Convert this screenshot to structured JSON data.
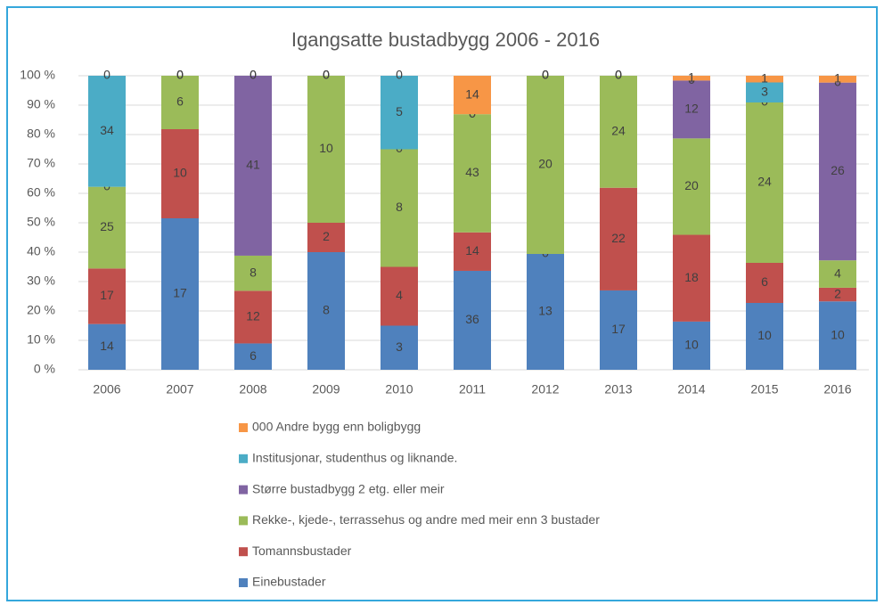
{
  "chart_data": {
    "type": "stacked_bar_percent",
    "title": "Igangsatte bustadbygg 2006 - 2016",
    "categories": [
      "2006",
      "2007",
      "2008",
      "2009",
      "2010",
      "2011",
      "2012",
      "2013",
      "2014",
      "2015",
      "2016"
    ],
    "series": [
      {
        "name": "Einebustader",
        "color": "#4f81bd",
        "values": [
          14,
          17,
          6,
          8,
          3,
          36,
          13,
          17,
          10,
          10,
          10
        ]
      },
      {
        "name": "Tomannsbustader",
        "color": "#c0504d",
        "values": [
          17,
          10,
          12,
          2,
          4,
          14,
          0,
          22,
          18,
          6,
          2
        ]
      },
      {
        "name": "Rekke-, kjede-, terrassehus og andre med meir enn 3 bustader",
        "color": "#9bbb59",
        "values": [
          25,
          6,
          8,
          10,
          8,
          43,
          20,
          24,
          20,
          24,
          4
        ]
      },
      {
        "name": "Større bustadbygg 2 etg. eller meir",
        "color": "#8064a2",
        "values": [
          0,
          0,
          41,
          0,
          0,
          0,
          0,
          0,
          12,
          0,
          26
        ]
      },
      {
        "name": "Institusjonar, studenthus og liknande.",
        "color": "#4bacc6",
        "values": [
          34,
          0,
          0,
          0,
          5,
          0,
          0,
          0,
          0,
          3,
          0
        ]
      },
      {
        "name": "000 Andre bygg enn boligbygg",
        "color": "#f79646",
        "values": [
          0,
          0,
          0,
          0,
          0,
          14,
          0,
          0,
          1,
          1,
          1
        ]
      }
    ],
    "ylim": [
      0,
      100
    ],
    "yticks": [
      {
        "value": 0,
        "label": "0 %"
      },
      {
        "value": 10,
        "label": "10 %"
      },
      {
        "value": 20,
        "label": "20 %"
      },
      {
        "value": 30,
        "label": "30 %"
      },
      {
        "value": 40,
        "label": "40 %"
      },
      {
        "value": 50,
        "label": "50 %"
      },
      {
        "value": 60,
        "label": "60 %"
      },
      {
        "value": 70,
        "label": "70 %"
      },
      {
        "value": 80,
        "label": "80 %"
      },
      {
        "value": 90,
        "label": "90 %"
      },
      {
        "value": 100,
        "label": "100 %"
      }
    ],
    "grid": true,
    "legend": "bottom"
  }
}
